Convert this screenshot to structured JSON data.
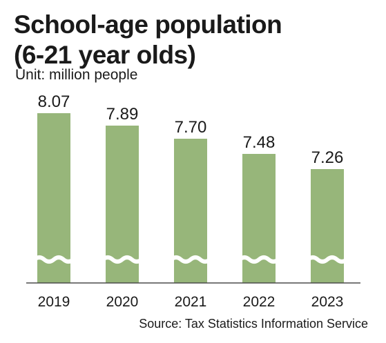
{
  "title_lines": [
    "School-age population",
    "(6-21 year olds)"
  ],
  "unit": "Unit: million people",
  "source": "Source: Tax Statistics Information Service",
  "colors": {
    "bar": "#97b67a",
    "axis": "#4a4a4a",
    "background": "#ffffff"
  },
  "chart_data": {
    "type": "bar",
    "categories": [
      "2019",
      "2020",
      "2021",
      "2022",
      "2023"
    ],
    "values": [
      8.07,
      7.89,
      7.7,
      7.48,
      7.26
    ],
    "value_labels": [
      "8.07",
      "7.89",
      "7.70",
      "7.48",
      "7.26"
    ],
    "axis_break": true,
    "grid": false,
    "legend": "none"
  }
}
